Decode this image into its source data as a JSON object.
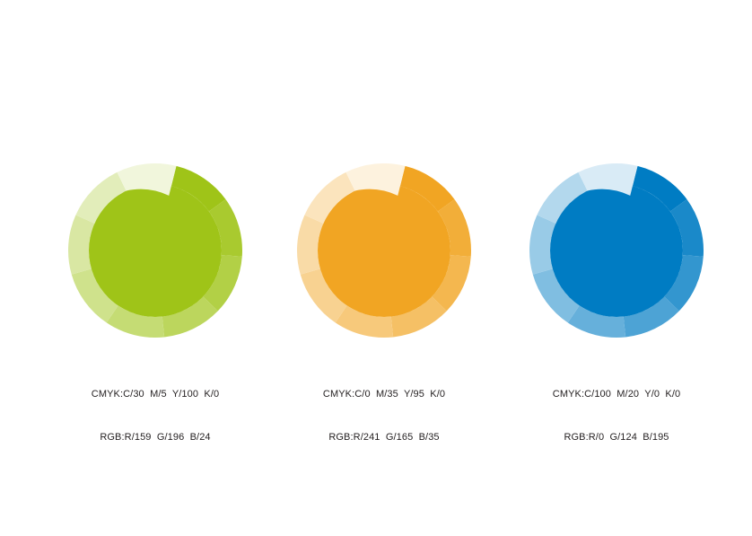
{
  "page": {
    "background": "#ffffff",
    "text_color": "#231F20"
  },
  "ring_design": {
    "segment_count": 9,
    "segment_sweep_deg": 40,
    "start_angle_deg": 14,
    "tints": [
      1.0,
      0.9,
      0.8,
      0.7,
      0.6,
      0.5,
      0.4,
      0.3,
      0.15
    ],
    "outer_radius": 97,
    "disc_radius": 74,
    "notch_inner_radius": 63
  },
  "swatches": [
    {
      "id": "green",
      "color": "#9FC418",
      "rgb": {
        "r": 159,
        "g": 196,
        "b": 24
      },
      "cmyk_label": "CMYK:C/30  M/5  Y/100  K/0",
      "rgb_label": "RGB:R/159  G/196  B/24"
    },
    {
      "id": "orange",
      "color": "#F1A523",
      "rgb": {
        "r": 241,
        "g": 165,
        "b": 35
      },
      "cmyk_label": "CMYK:C/0  M/35  Y/95  K/0",
      "rgb_label": "RGB:R/241  G/165  B/35"
    },
    {
      "id": "blue",
      "color": "#007CC3",
      "rgb": {
        "r": 0,
        "g": 124,
        "b": 195
      },
      "cmyk_label": "CMYK:C/100  M/20  Y/0  K/0",
      "rgb_label": "RGB:R/0  G/124  B/195"
    }
  ]
}
